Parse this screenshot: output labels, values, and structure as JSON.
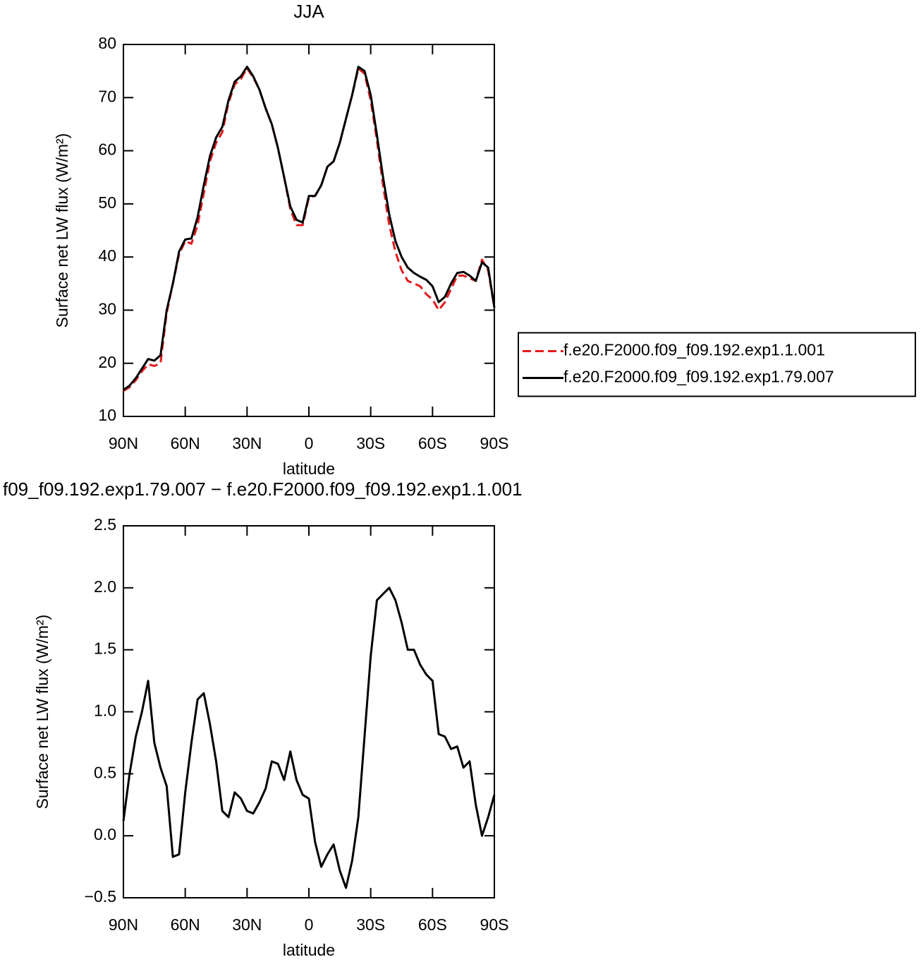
{
  "chart_data": [
    {
      "type": "line",
      "title": "JJA",
      "xlabel": "latitude",
      "ylabel": "Surface net LW flux (W/m²)",
      "x": [
        90,
        87,
        84,
        81,
        78,
        75,
        72,
        69,
        66,
        63,
        60,
        57,
        54,
        51,
        48,
        45,
        42,
        39,
        36,
        33,
        30,
        27,
        24,
        21,
        18,
        15,
        12,
        9,
        6,
        3,
        0,
        -3,
        -6,
        -9,
        -12,
        -15,
        -18,
        -21,
        -24,
        -27,
        -30,
        -33,
        -36,
        -39,
        -42,
        -45,
        -48,
        -51,
        -54,
        -57,
        -60,
        -63,
        -66,
        -69,
        -72,
        -75,
        -78,
        -81,
        -84,
        -87,
        -90
      ],
      "series": [
        {
          "name": "f.e20.F2000.f09_f09.192.exp1.1.001",
          "color": "#e41a1c",
          "linestyle": "dashed",
          "values": [
            14.8,
            15.5,
            16.8,
            18.5,
            19.8,
            19.5,
            20,
            29.5,
            35,
            40.5,
            43,
            42.5,
            46,
            52,
            58,
            61.5,
            63.5,
            69,
            72.5,
            73.5,
            75.5,
            73.8,
            71.5,
            68,
            65,
            60.5,
            55,
            49,
            46,
            46,
            51.2,
            51.5,
            53.5,
            57,
            58,
            61.5,
            66,
            70.5,
            75.5,
            74.5,
            69.5,
            62,
            53.5,
            46,
            41,
            37.5,
            35.5,
            35,
            34.5,
            33,
            32,
            30,
            31.5,
            34,
            36.5,
            36.5,
            36,
            35.5,
            39.5,
            37.5,
            30.5
          ]
        },
        {
          "name": "f.e20.F2000.f09_f09.192.exp1.79.007",
          "color": "#000000",
          "linestyle": "solid",
          "values": [
            15,
            15.8,
            17.2,
            19,
            20.8,
            20.5,
            21.5,
            30,
            35,
            41,
            43.3,
            43.5,
            47.5,
            53.5,
            59,
            62.5,
            64.5,
            69.5,
            73,
            74,
            75.8,
            74,
            71.5,
            68,
            65,
            60.5,
            55,
            49.5,
            47,
            46.5,
            51.5,
            51.5,
            53.5,
            57,
            58,
            61.5,
            66,
            70.5,
            75.8,
            75,
            70.5,
            63,
            55,
            48,
            43,
            40,
            38,
            37,
            36.3,
            35.7,
            34.5,
            31.5,
            32.5,
            35,
            37,
            37.2,
            36.5,
            35.5,
            39,
            38,
            30.5
          ]
        }
      ],
      "xlim": [
        90,
        -90
      ],
      "xticks": [
        {
          "value": 90,
          "label": "90N"
        },
        {
          "value": 60,
          "label": "60N"
        },
        {
          "value": 30,
          "label": "30N"
        },
        0,
        {
          "value": -30,
          "label": "30S"
        },
        {
          "value": -60,
          "label": "60S"
        },
        {
          "value": -90,
          "label": "90S"
        }
      ],
      "ylim": [
        10,
        80
      ],
      "yticks": [
        10,
        20,
        30,
        40,
        50,
        60,
        70,
        80
      ],
      "legend": "right"
    },
    {
      "type": "line",
      "title": "f09_f09.192.exp1.79.007 − f.e20.F2000.f09_f09.192.exp1.1.001",
      "xlabel": "latitude",
      "ylabel": "Surface net LW flux (W/m²)",
      "x": [
        90,
        87,
        84,
        81,
        78,
        75,
        72,
        69,
        66,
        63,
        60,
        57,
        54,
        51,
        48,
        45,
        42,
        39,
        36,
        33,
        30,
        27,
        24,
        21,
        18,
        15,
        12,
        9,
        6,
        3,
        0,
        -3,
        -6,
        -9,
        -12,
        -15,
        -18,
        -21,
        -24,
        -27,
        -30,
        -33,
        -36,
        -39,
        -42,
        -45,
        -48,
        -51,
        -54,
        -57,
        -60,
        -63,
        -66,
        -69,
        -72,
        -75,
        -78,
        -81,
        -84,
        -87,
        -90
      ],
      "series": [
        {
          "color": "#000000",
          "linestyle": "solid",
          "values": [
            0.12,
            0.5,
            0.8,
            1.0,
            1.25,
            0.75,
            0.55,
            0.4,
            -0.17,
            -0.15,
            0.35,
            0.75,
            1.1,
            1.15,
            0.9,
            0.6,
            0.2,
            0.15,
            0.35,
            0.3,
            0.2,
            0.18,
            0.27,
            0.38,
            0.6,
            0.58,
            0.45,
            0.68,
            0.45,
            0.33,
            0.3,
            -0.05,
            -0.25,
            -0.15,
            -0.07,
            -0.28,
            -0.42,
            -0.2,
            0.15,
            0.8,
            1.45,
            1.9,
            1.95,
            2.0,
            1.9,
            1.72,
            1.5,
            1.5,
            1.38,
            1.3,
            1.25,
            0.82,
            0.8,
            0.7,
            0.72,
            0.55,
            0.6,
            0.25,
            0.0,
            0.15,
            0.33
          ]
        }
      ],
      "xlim": [
        90,
        -90
      ],
      "xticks": [
        {
          "value": 90,
          "label": "90N"
        },
        {
          "value": 60,
          "label": "60N"
        },
        {
          "value": 30,
          "label": "30N"
        },
        0,
        {
          "value": -30,
          "label": "30S"
        },
        {
          "value": -60,
          "label": "60S"
        },
        {
          "value": -90,
          "label": "90S"
        }
      ],
      "ylim": [
        -0.5,
        2.5
      ],
      "yticks": [
        {
          "value": -0.5,
          "label": "−0.5"
        },
        {
          "value": 0,
          "label": "0.0"
        },
        0.5,
        {
          "value": 1,
          "label": "1.0"
        },
        1.5,
        {
          "value": 2,
          "label": "2.0"
        },
        2.5
      ]
    }
  ]
}
